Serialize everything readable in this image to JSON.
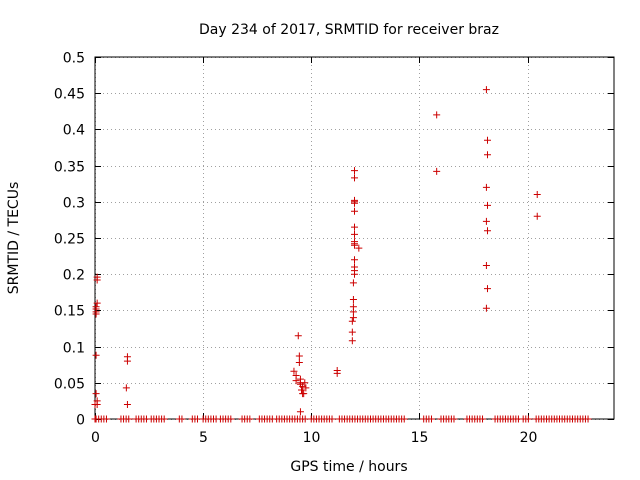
{
  "chart_data": {
    "type": "scatter",
    "title": "Day 234 of 2017, SRMTID for receiver braz",
    "xlabel": "GPS time / hours",
    "ylabel": "SRMTID / TECUs",
    "xlim": [
      0,
      24
    ],
    "ylim": [
      0,
      0.5
    ],
    "xticks": [
      0,
      5,
      10,
      15,
      20
    ],
    "yticks": [
      0,
      0.05,
      0.1,
      0.15,
      0.2,
      0.25,
      0.3,
      0.35,
      0.4,
      0.45,
      0.5
    ],
    "grid": true,
    "marker": "+",
    "color": "#cc0000",
    "series": [
      {
        "name": "SRMTID",
        "x": [
          0.0,
          0.0,
          0.05,
          0.05,
          0.05,
          0.05,
          0.05,
          0.05,
          0.1,
          0.1,
          0.1,
          0.1,
          0.1,
          1.5,
          1.5,
          1.45,
          1.5,
          9.2,
          9.3,
          9.3,
          9.4,
          9.45,
          9.45,
          9.5,
          9.5,
          9.5,
          9.55,
          9.6,
          9.6,
          9.65,
          9.7,
          9.75,
          9.5,
          11.2,
          11.2,
          11.9,
          11.9,
          11.9,
          11.95,
          11.95,
          11.95,
          11.95,
          11.95,
          12.0,
          12.0,
          12.0,
          12.0,
          12.0,
          12.0,
          12.0,
          12.0,
          12.0,
          12.0,
          12.0,
          12.0,
          12.0,
          12.0,
          12.0,
          12.2,
          15.8,
          15.8,
          18.1,
          18.15,
          18.15,
          18.1,
          18.15,
          18.1,
          18.15,
          18.1,
          18.15,
          18.1,
          20.45,
          20.45
        ],
        "y": [
          0.0,
          0.02,
          0.035,
          0.088,
          0.145,
          0.148,
          0.152,
          0.155,
          0.16,
          0.192,
          0.196,
          0.02,
          0.025,
          0.086,
          0.08,
          0.043,
          0.02,
          0.066,
          0.06,
          0.053,
          0.115,
          0.087,
          0.078,
          0.055,
          0.05,
          0.048,
          0.04,
          0.045,
          0.035,
          0.035,
          0.05,
          0.043,
          0.01,
          0.067,
          0.063,
          0.108,
          0.12,
          0.135,
          0.14,
          0.148,
          0.155,
          0.165,
          0.188,
          0.2,
          0.205,
          0.21,
          0.22,
          0.24,
          0.242,
          0.245,
          0.255,
          0.265,
          0.287,
          0.298,
          0.3,
          0.333,
          0.343,
          0.302,
          0.236,
          0.342,
          0.42,
          0.455,
          0.385,
          0.365,
          0.32,
          0.295,
          0.273,
          0.26,
          0.212,
          0.18,
          0.153,
          0.31,
          0.28
        ]
      }
    ],
    "baseline_segments": [
      [
        0.05,
        0.6
      ],
      [
        1.2,
        1.6
      ],
      [
        1.9,
        2.4
      ],
      [
        2.6,
        3.2
      ],
      [
        3.9,
        4.1
      ],
      [
        4.5,
        4.8
      ],
      [
        5.0,
        5.6
      ],
      [
        5.8,
        6.3
      ],
      [
        6.8,
        7.2
      ],
      [
        7.6,
        8.2
      ],
      [
        8.4,
        9.8
      ],
      [
        10.0,
        11.0
      ],
      [
        11.3,
        14.3
      ],
      [
        15.2,
        15.6
      ],
      [
        16.0,
        16.6
      ],
      [
        17.2,
        18.0
      ],
      [
        18.5,
        19.6
      ],
      [
        19.8,
        20.1
      ],
      [
        20.4,
        22.8
      ]
    ],
    "baseline_step": 0.12,
    "baseline_value": 0
  }
}
